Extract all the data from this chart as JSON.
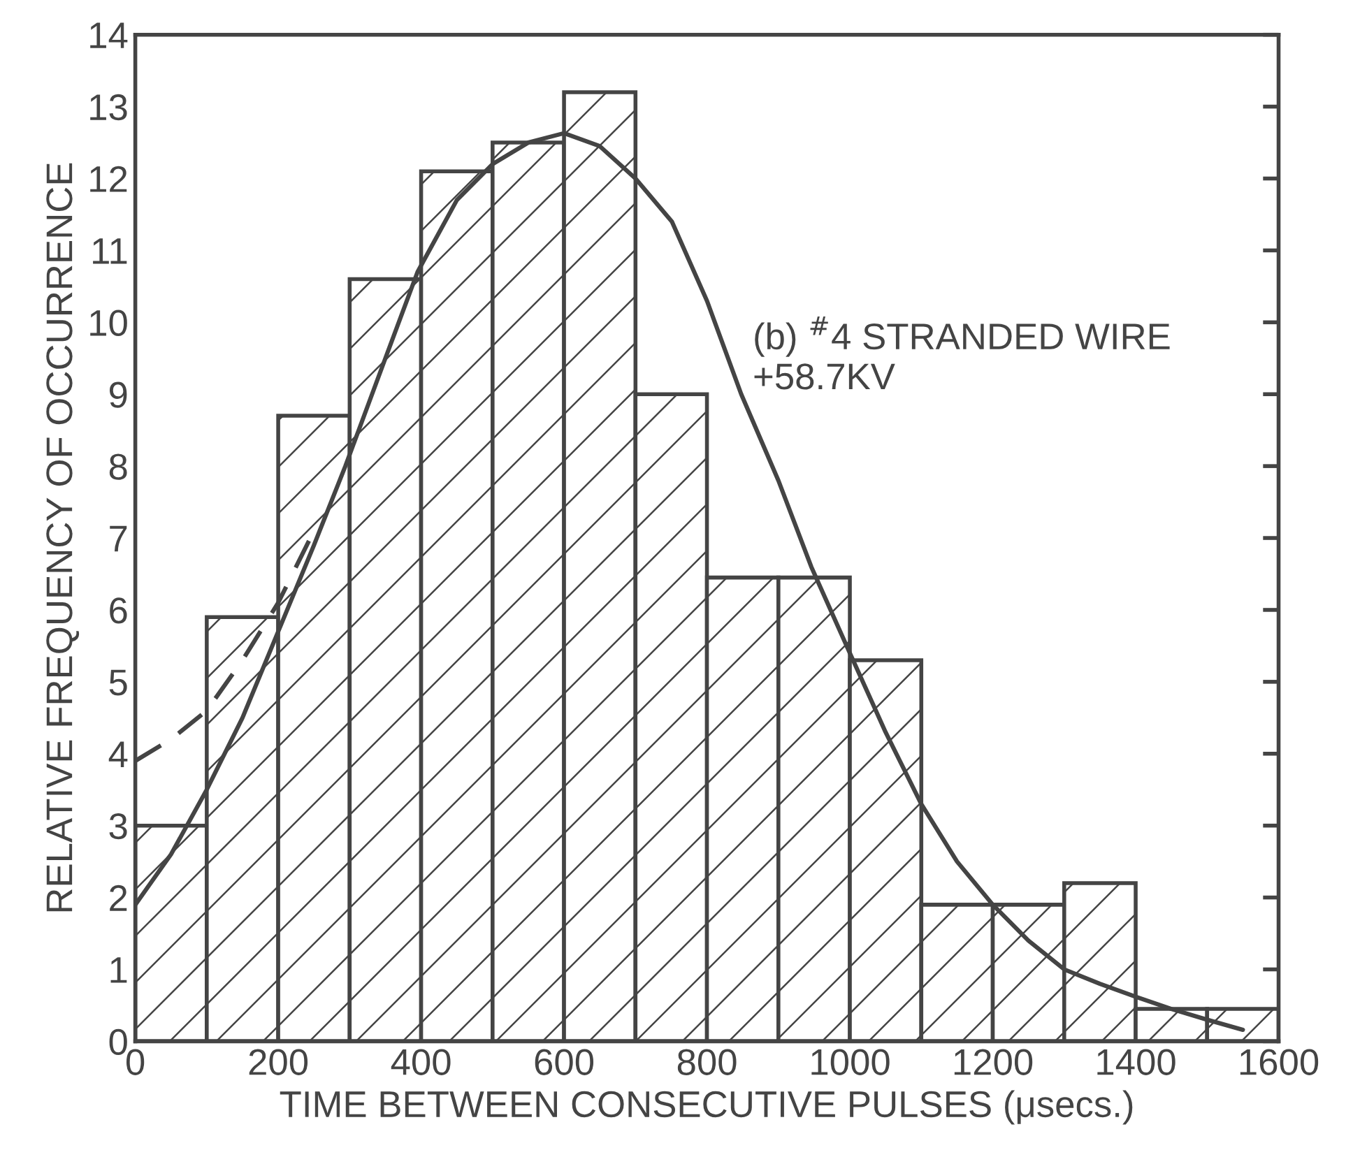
{
  "chart_data": {
    "type": "histogram",
    "xlabel": "TIME BETWEEN CONSECUTIVE PULSES (μsecs.)",
    "ylabel": "RELATIVE FREQUENCY OF OCCURRENCE",
    "bins": [
      0,
      100,
      200,
      300,
      400,
      500,
      600,
      700,
      800,
      900,
      1000,
      1100,
      1200,
      1300,
      1400,
      1500,
      1600
    ],
    "values": [
      3.0,
      5.9,
      8.7,
      10.6,
      12.1,
      12.5,
      13.2,
      9.0,
      6.45,
      6.45,
      5.3,
      1.9,
      1.9,
      2.2,
      0.45,
      0.45
    ],
    "color": "#444444",
    "series": [
      {
        "type": "line",
        "line_style": "solid",
        "color": "#444444",
        "x": [
          0,
          50,
          100,
          150,
          200,
          250,
          294,
          350,
          395,
          450,
          500,
          550,
          600,
          650,
          700,
          751,
          800,
          848,
          900,
          946,
          1000,
          1050,
          1100,
          1150,
          1200,
          1250,
          1300,
          1350,
          1400,
          1450,
          1500,
          1550
        ],
        "values": [
          1.9,
          2.6,
          3.5,
          4.5,
          5.7,
          6.9,
          8.0,
          9.5,
          10.7,
          11.7,
          12.2,
          12.5,
          12.63,
          12.45,
          12.0,
          11.4,
          10.3,
          9.0,
          7.8,
          6.6,
          5.4,
          4.3,
          3.3,
          2.5,
          1.9,
          1.4,
          1.0,
          0.8,
          0.62,
          0.45,
          0.3,
          0.16
        ]
      },
      {
        "type": "line",
        "line_style": "dashed",
        "color": "#444444",
        "x": [
          0,
          50,
          100,
          150,
          200,
          245
        ],
        "values": [
          3.9,
          4.2,
          4.6,
          5.3,
          6.1,
          7.0
        ]
      }
    ],
    "annotations": [
      "(b) $^{#}$4 STRANDED WIRE\n+58.7KV"
    ],
    "xlim": [
      0,
      1600
    ],
    "xticks": [
      0,
      200,
      400,
      600,
      800,
      1000,
      1200,
      1400,
      1600
    ],
    "ylim": [
      0,
      14
    ],
    "yticks": [
      0,
      1,
      2,
      3,
      4,
      5,
      6,
      7,
      8,
      9,
      10,
      11,
      12,
      13,
      14
    ],
    "grid": false,
    "legend": false
  }
}
